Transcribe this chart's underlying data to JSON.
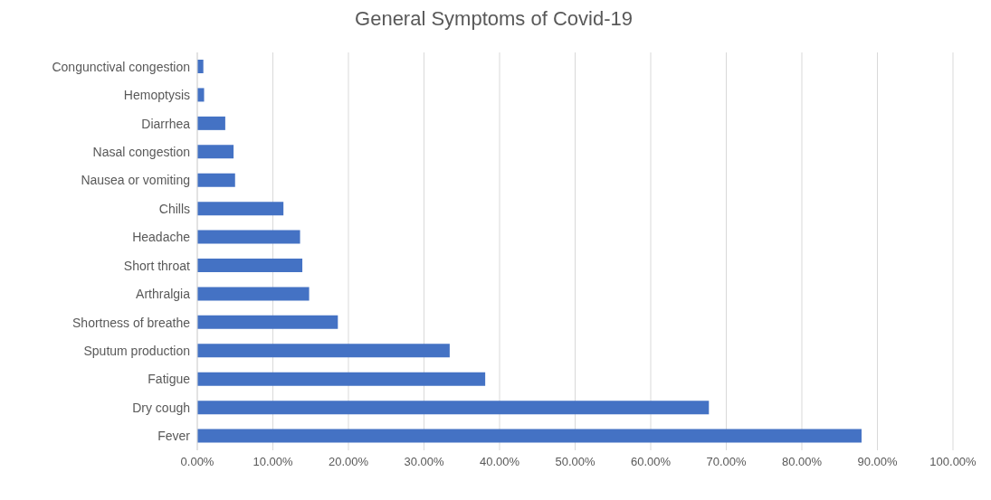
{
  "chart_data": {
    "type": "bar",
    "orientation": "horizontal",
    "title": "General Symptoms of Covid-19",
    "categories": [
      "Congunctival congestion",
      "Hemoptysis",
      "Diarrhea",
      "Nasal congestion",
      "Nausea or vomiting",
      "Chills",
      "Headache",
      "Short throat",
      "Arthralgia",
      "Shortness of breathe",
      "Sputum production",
      "Fatigue",
      "Dry cough",
      "Fever"
    ],
    "values": [
      0.8,
      0.9,
      3.7,
      4.8,
      5.0,
      11.4,
      13.6,
      13.9,
      14.8,
      18.6,
      33.4,
      38.1,
      67.7,
      87.9
    ],
    "color": "#4472c4",
    "xlim": [
      0,
      100
    ],
    "xticks": [
      {
        "value": 0,
        "label": "0.00%"
      },
      {
        "value": 10,
        "label": "10.00%"
      },
      {
        "value": 20,
        "label": "20.00%"
      },
      {
        "value": 30,
        "label": "30.00%"
      },
      {
        "value": 40,
        "label": "40.00%"
      },
      {
        "value": 50,
        "label": "50.00%"
      },
      {
        "value": 60,
        "label": "60.00%"
      },
      {
        "value": 70,
        "label": "70.00%"
      },
      {
        "value": 80,
        "label": "80.00%"
      },
      {
        "value": 90,
        "label": "90.00%"
      },
      {
        "value": 100,
        "label": "100.00%"
      }
    ],
    "grid": "x",
    "legend": false
  }
}
